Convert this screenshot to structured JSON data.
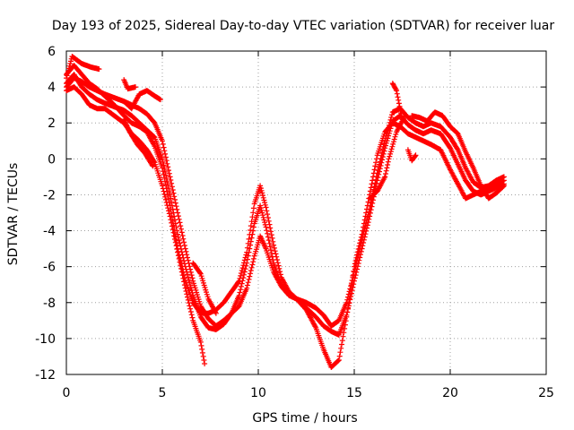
{
  "chart_data": {
    "type": "scatter",
    "title": "Day 193 of 2025, Sidereal Day-to-day VTEC variation (SDTVAR) for receiver luar",
    "xlabel": "GPS time / hours",
    "ylabel": "SDTVAR / TECUs",
    "xlim": [
      0,
      25
    ],
    "ylim": [
      -12,
      6
    ],
    "xticks": [
      0,
      5,
      10,
      15,
      20,
      25
    ],
    "yticks": [
      -12,
      -10,
      -8,
      -6,
      -4,
      -2,
      0,
      2,
      4,
      6
    ],
    "grid": true,
    "legend": "none",
    "marker": "plus",
    "color": "#ff0000",
    "series": [
      {
        "points": [
          [
            0.0,
            4.5
          ],
          [
            0.3,
            5.7
          ],
          [
            0.8,
            5.3
          ],
          [
            1.3,
            5.1
          ],
          [
            1.7,
            5.0
          ]
        ]
      },
      {
        "points": [
          [
            0.0,
            4.0
          ],
          [
            0.4,
            4.5
          ],
          [
            0.8,
            4.3
          ],
          [
            1.2,
            4.0
          ],
          [
            1.6,
            3.8
          ],
          [
            2.0,
            3.6
          ],
          [
            2.5,
            3.4
          ],
          [
            3.0,
            3.2
          ],
          [
            3.4,
            3.0
          ],
          [
            3.8,
            2.8
          ],
          [
            4.2,
            2.5
          ],
          [
            4.6,
            2.0
          ],
          [
            5.0,
            1.0
          ],
          [
            5.4,
            -1.0
          ],
          [
            5.8,
            -3.0
          ],
          [
            6.2,
            -5.0
          ],
          [
            6.6,
            -6.8
          ],
          [
            7.0,
            -8.2
          ],
          [
            7.4,
            -8.9
          ],
          [
            7.8,
            -9.3
          ],
          [
            8.2,
            -9.0
          ],
          [
            8.6,
            -8.6
          ],
          [
            9.0,
            -8.2
          ],
          [
            9.4,
            -7.2
          ],
          [
            9.8,
            -5.4
          ],
          [
            10.1,
            -4.3
          ],
          [
            10.4,
            -5.0
          ],
          [
            10.8,
            -6.3
          ],
          [
            11.2,
            -7.1
          ],
          [
            11.6,
            -7.6
          ],
          [
            12.0,
            -7.8
          ],
          [
            12.5,
            -8.0
          ],
          [
            13.0,
            -8.3
          ],
          [
            13.4,
            -8.7
          ],
          [
            13.8,
            -9.3
          ],
          [
            14.2,
            -9.0
          ],
          [
            14.6,
            -8.0
          ],
          [
            15.0,
            -6.3
          ],
          [
            15.4,
            -4.5
          ],
          [
            15.8,
            -2.8
          ],
          [
            16.2,
            -0.8
          ],
          [
            16.6,
            1.0
          ],
          [
            17.0,
            2.6
          ],
          [
            17.4,
            2.8
          ],
          [
            17.8,
            2.3
          ],
          [
            18.2,
            2.0
          ],
          [
            18.6,
            1.8
          ],
          [
            19.0,
            2.0
          ],
          [
            19.5,
            1.8
          ],
          [
            20.0,
            1.2
          ],
          [
            20.4,
            0.5
          ],
          [
            20.8,
            -0.5
          ],
          [
            21.2,
            -1.3
          ],
          [
            21.6,
            -1.6
          ],
          [
            22.0,
            -1.5
          ],
          [
            22.4,
            -1.2
          ],
          [
            22.8,
            -1.0
          ]
        ]
      },
      {
        "points": [
          [
            0.0,
            4.2
          ],
          [
            0.4,
            4.7
          ],
          [
            0.8,
            4.0
          ],
          [
            1.2,
            3.6
          ],
          [
            1.6,
            3.3
          ],
          [
            2.0,
            3.1
          ],
          [
            2.5,
            2.9
          ],
          [
            3.0,
            2.7
          ],
          [
            3.4,
            2.4
          ],
          [
            3.8,
            2.0
          ],
          [
            4.2,
            1.6
          ],
          [
            4.6,
            1.2
          ],
          [
            5.0,
            0.0
          ],
          [
            5.4,
            -2.0
          ],
          [
            5.8,
            -4.2
          ],
          [
            6.2,
            -6.0
          ],
          [
            6.6,
            -7.6
          ],
          [
            7.0,
            -8.8
          ],
          [
            7.4,
            -9.4
          ],
          [
            7.8,
            -9.5
          ],
          [
            8.2,
            -9.2
          ],
          [
            8.6,
            -8.6
          ],
          [
            9.0,
            -7.6
          ],
          [
            9.4,
            -5.8
          ],
          [
            9.8,
            -3.6
          ],
          [
            10.1,
            -2.6
          ],
          [
            10.4,
            -3.8
          ],
          [
            10.8,
            -5.8
          ],
          [
            11.2,
            -7.0
          ],
          [
            11.6,
            -7.5
          ],
          [
            12.0,
            -7.8
          ],
          [
            12.5,
            -8.3
          ],
          [
            13.0,
            -8.8
          ],
          [
            13.4,
            -9.3
          ],
          [
            13.8,
            -9.6
          ],
          [
            14.2,
            -9.8
          ],
          [
            14.6,
            -8.7
          ],
          [
            15.0,
            -6.8
          ],
          [
            15.4,
            -5.0
          ],
          [
            15.8,
            -3.2
          ],
          [
            16.2,
            -1.2
          ],
          [
            16.6,
            0.6
          ],
          [
            17.0,
            2.1
          ],
          [
            17.4,
            2.4
          ],
          [
            17.8,
            1.9
          ],
          [
            18.2,
            1.6
          ],
          [
            18.6,
            1.4
          ],
          [
            19.0,
            1.6
          ],
          [
            19.5,
            1.4
          ],
          [
            20.0,
            0.6
          ],
          [
            20.4,
            -0.3
          ],
          [
            20.8,
            -1.2
          ],
          [
            21.2,
            -1.8
          ],
          [
            21.6,
            -2.0
          ],
          [
            22.0,
            -1.8
          ],
          [
            22.4,
            -1.6
          ],
          [
            22.8,
            -1.4
          ]
        ]
      },
      {
        "points": [
          [
            0.0,
            4.7
          ],
          [
            0.4,
            5.2
          ],
          [
            0.8,
            4.7
          ],
          [
            1.2,
            4.2
          ],
          [
            1.6,
            3.9
          ],
          [
            2.0,
            3.5
          ],
          [
            2.5,
            3.0
          ],
          [
            3.0,
            2.4
          ],
          [
            3.4,
            2.0
          ],
          [
            3.8,
            1.8
          ],
          [
            4.2,
            1.5
          ],
          [
            4.6,
            0.7
          ],
          [
            5.0,
            -0.5
          ],
          [
            5.4,
            -2.6
          ],
          [
            5.8,
            -5.0
          ],
          [
            6.2,
            -6.8
          ],
          [
            6.6,
            -8.0
          ],
          [
            7.0,
            -8.6
          ],
          [
            7.4,
            -8.6
          ],
          [
            7.8,
            -8.4
          ],
          [
            8.2,
            -8.0
          ],
          [
            8.6,
            -7.4
          ],
          [
            9.0,
            -6.8
          ],
          [
            9.4,
            -5.2
          ],
          [
            9.8,
            -2.5
          ],
          [
            10.1,
            -1.5
          ],
          [
            10.4,
            -2.7
          ],
          [
            10.8,
            -4.8
          ],
          [
            11.2,
            -6.6
          ],
          [
            11.6,
            -7.4
          ],
          [
            12.0,
            -7.8
          ],
          [
            12.5,
            -8.4
          ],
          [
            13.0,
            -9.4
          ],
          [
            13.4,
            -10.6
          ],
          [
            13.8,
            -11.6
          ],
          [
            14.2,
            -11.2
          ],
          [
            14.6,
            -8.8
          ],
          [
            15.0,
            -6.0
          ],
          [
            15.4,
            -4.2
          ],
          [
            15.8,
            -2.0
          ],
          [
            16.2,
            0.2
          ],
          [
            16.6,
            1.5
          ],
          [
            17.0,
            2.0
          ],
          [
            17.4,
            1.8
          ],
          [
            17.8,
            1.4
          ],
          [
            18.2,
            1.2
          ],
          [
            18.6,
            1.0
          ],
          [
            19.0,
            0.8
          ],
          [
            19.5,
            0.5
          ],
          [
            20.0,
            -0.6
          ],
          [
            20.4,
            -1.4
          ],
          [
            20.8,
            -2.2
          ],
          [
            21.2,
            -2.0
          ],
          [
            21.6,
            -1.8
          ],
          [
            22.0,
            -1.6
          ],
          [
            22.4,
            -1.4
          ],
          [
            22.8,
            -1.2
          ]
        ]
      },
      {
        "points": [
          [
            0.0,
            3.8
          ],
          [
            0.4,
            4.0
          ],
          [
            0.8,
            3.6
          ],
          [
            1.2,
            3.0
          ],
          [
            1.6,
            2.8
          ],
          [
            2.0,
            2.8
          ],
          [
            2.5,
            2.4
          ],
          [
            3.0,
            2.0
          ],
          [
            3.4,
            1.4
          ],
          [
            3.8,
            1.0
          ],
          [
            4.2,
            0.5
          ],
          [
            4.6,
            -0.2
          ],
          [
            5.0,
            -1.5
          ],
          [
            5.4,
            -3.2
          ],
          [
            5.8,
            -5.2
          ],
          [
            6.2,
            -7.2
          ],
          [
            6.6,
            -9.0
          ],
          [
            7.0,
            -10.2
          ],
          [
            7.2,
            -11.4
          ]
        ]
      },
      {
        "points": [
          [
            3.0,
            3.2
          ],
          [
            3.4,
            2.8
          ],
          [
            3.8,
            3.6
          ],
          [
            4.2,
            3.8
          ],
          [
            4.6,
            3.5
          ],
          [
            4.9,
            3.3
          ]
        ]
      },
      {
        "points": [
          [
            3.0,
            2.2
          ],
          [
            3.3,
            1.5
          ],
          [
            3.7,
            0.8
          ],
          [
            4.1,
            0.3
          ],
          [
            4.5,
            -0.4
          ]
        ]
      },
      {
        "points": [
          [
            3.0,
            4.4
          ],
          [
            3.2,
            3.9
          ],
          [
            3.6,
            4.0
          ]
        ]
      },
      {
        "points": [
          [
            6.6,
            -5.8
          ],
          [
            7.0,
            -6.4
          ],
          [
            7.4,
            -7.8
          ],
          [
            7.8,
            -8.6
          ]
        ]
      },
      {
        "points": [
          [
            15.8,
            -2.2
          ],
          [
            16.2,
            -1.8
          ],
          [
            16.6,
            -1.0
          ],
          [
            16.8,
            0.0
          ],
          [
            17.2,
            1.5
          ],
          [
            17.6,
            2.3
          ]
        ]
      },
      {
        "points": [
          [
            17.0,
            4.2
          ],
          [
            17.2,
            3.8
          ],
          [
            17.5,
            2.2
          ]
        ]
      },
      {
        "points": [
          [
            18.0,
            2.4
          ],
          [
            18.4,
            2.3
          ],
          [
            18.8,
            2.1
          ],
          [
            19.2,
            2.6
          ],
          [
            19.6,
            2.4
          ],
          [
            20.0,
            1.8
          ],
          [
            20.4,
            1.4
          ],
          [
            20.8,
            0.4
          ],
          [
            21.2,
            -0.5
          ],
          [
            21.6,
            -1.5
          ],
          [
            22.0,
            -2.2
          ],
          [
            22.4,
            -1.9
          ],
          [
            22.8,
            -1.5
          ]
        ]
      },
      {
        "points": [
          [
            17.8,
            0.5
          ],
          [
            18.0,
            -0.1
          ],
          [
            18.2,
            0.2
          ]
        ]
      }
    ]
  }
}
